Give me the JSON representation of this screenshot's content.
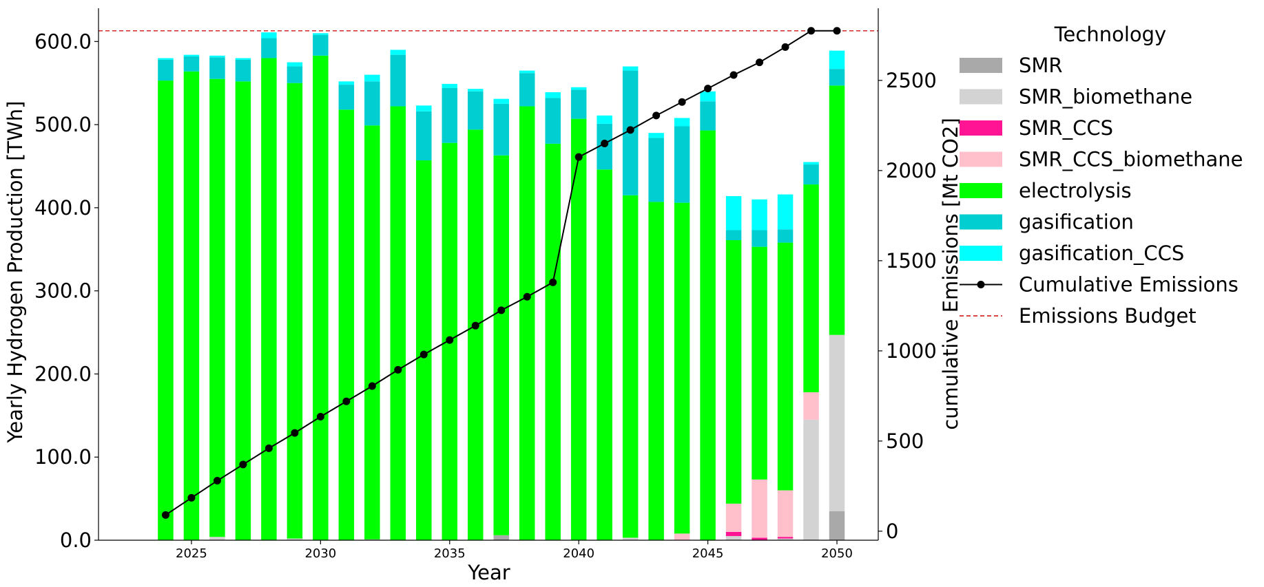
{
  "chart_data": {
    "type": "bar",
    "stacked": true,
    "x": [
      2024,
      2025,
      2026,
      2027,
      2028,
      2029,
      2030,
      2031,
      2032,
      2033,
      2034,
      2035,
      2036,
      2037,
      2038,
      2039,
      2040,
      2041,
      2042,
      2043,
      2044,
      2045,
      2046,
      2047,
      2048,
      2049,
      2050
    ],
    "xticks": [
      "2025",
      "2030",
      "2035",
      "2040",
      "2045",
      "2050"
    ],
    "xlabel": "Year",
    "ylabel": "Yearly Hydrogen Production [TWh]",
    "y2label": "cumulative Emissions [Mt CO2]",
    "ylim": [
      0,
      640
    ],
    "y2lim": [
      -50,
      2900
    ],
    "yticks": [
      "0.0",
      "100.0",
      "200.0",
      "300.0",
      "400.0",
      "500.0",
      "600.0"
    ],
    "y2ticks": [
      "0",
      "500",
      "1000",
      "1500",
      "2000",
      "2500"
    ],
    "legend_title": "Technology",
    "legend_position": "outside-right",
    "series": [
      {
        "name": "SMR",
        "color": "#a9a9a9",
        "values": [
          0,
          0,
          0,
          0,
          0,
          0,
          0,
          0,
          0,
          0,
          0,
          0,
          0,
          6,
          0,
          0,
          0,
          0,
          0,
          0,
          0,
          0,
          0,
          0,
          0,
          0,
          35
        ]
      },
      {
        "name": "SMR_biomethane",
        "color": "#d3d3d3",
        "values": [
          0,
          0,
          4,
          0,
          0,
          2,
          0,
          0,
          1,
          0,
          0,
          0,
          0,
          0,
          0,
          0,
          0,
          0,
          3,
          0,
          0,
          0,
          5,
          0,
          2,
          145,
          212
        ]
      },
      {
        "name": "SMR_CCS",
        "color": "#ff1493",
        "values": [
          0,
          0,
          0,
          0,
          0,
          0,
          0,
          0,
          0,
          0,
          0,
          0,
          0,
          0,
          0,
          0,
          0,
          0,
          0,
          0,
          0,
          0,
          5,
          3,
          2,
          0,
          0
        ]
      },
      {
        "name": "SMR_CCS_biomethane",
        "color": "#ffc0cb",
        "values": [
          0,
          0,
          0,
          0,
          0,
          0,
          0,
          0,
          0,
          0,
          0,
          0,
          0,
          0,
          0,
          0,
          0,
          0,
          0,
          0,
          8,
          0,
          34,
          70,
          56,
          33,
          0
        ]
      },
      {
        "name": "electrolysis",
        "color": "#00ff00",
        "values": [
          553,
          564,
          551,
          552,
          580,
          548,
          583,
          518,
          498,
          522,
          457,
          478,
          494,
          457,
          522,
          477,
          507,
          446,
          412,
          407,
          398,
          493,
          317,
          280,
          298,
          250,
          300
        ]
      },
      {
        "name": "gasification",
        "color": "#00ced1",
        "values": [
          25,
          18,
          26,
          26,
          24,
          20,
          25,
          30,
          53,
          62,
          59,
          66,
          46,
          62,
          40,
          55,
          35,
          55,
          150,
          77,
          92,
          35,
          12,
          20,
          16,
          24,
          20
        ]
      },
      {
        "name": "gasification_CCS",
        "color": "#00ffff",
        "values": [
          2,
          2,
          2,
          2,
          7,
          5,
          2,
          4,
          8,
          6,
          7,
          5,
          3,
          6,
          3,
          7,
          3,
          10,
          5,
          6,
          10,
          12,
          41,
          37,
          42,
          3,
          22
        ]
      }
    ],
    "lines": [
      {
        "name": "Cumulative Emissions",
        "axis": "right",
        "color": "#000000",
        "marker": "circle",
        "values": [
          90,
          185,
          280,
          370,
          460,
          545,
          635,
          720,
          805,
          895,
          980,
          1060,
          1140,
          1225,
          1300,
          1380,
          2075,
          2150,
          2225,
          2305,
          2380,
          2455,
          2530,
          2600,
          2685,
          2775,
          2775
        ]
      },
      {
        "name": "Emissions Budget",
        "axis": "right",
        "color": "#d62728",
        "style": "dashed",
        "value": 2775
      }
    ]
  }
}
